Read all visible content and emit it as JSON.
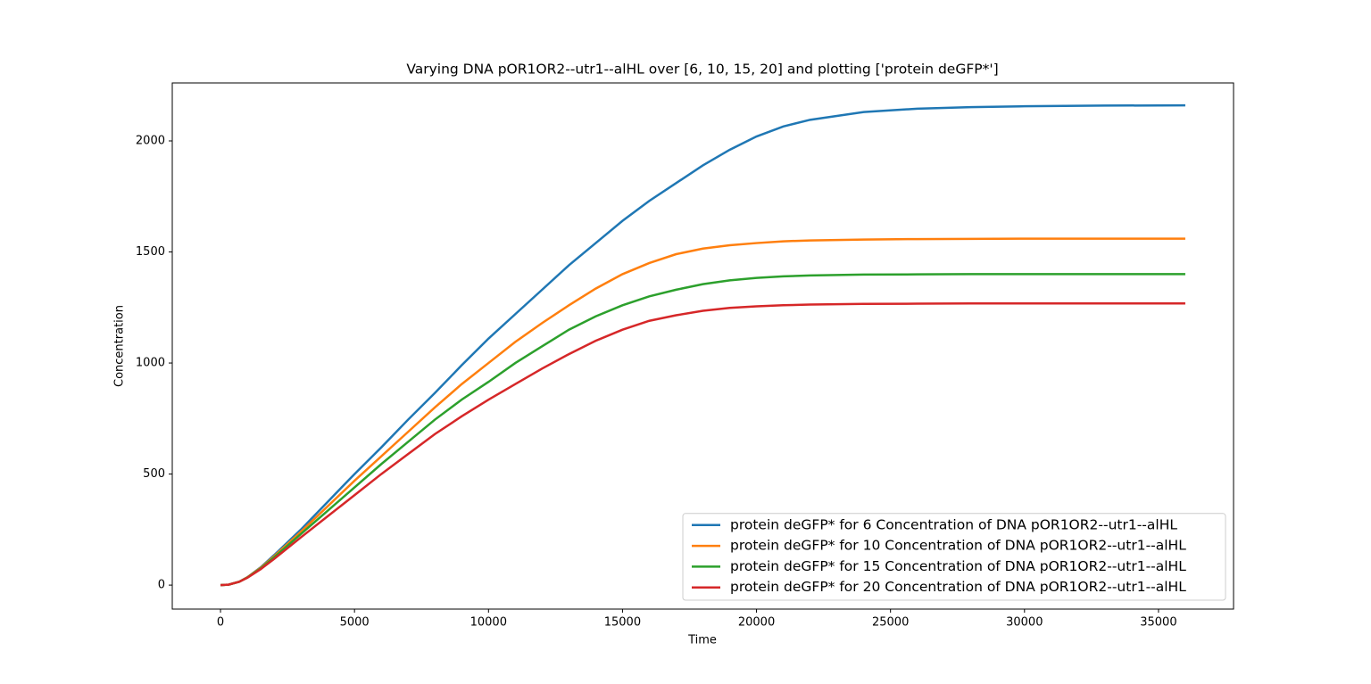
{
  "chart_data": {
    "type": "line",
    "title": "Varying DNA pOR1OR2--utr1--alHL over [6, 10, 15, 20] and plotting ['protein deGFP*']",
    "x_label": "Time",
    "y_label": "Concentration",
    "x": [
      0,
      300,
      700,
      1000,
      1500,
      2000,
      3000,
      4000,
      5000,
      6000,
      7000,
      8000,
      9000,
      10000,
      11000,
      12000,
      13000,
      14000,
      15000,
      16000,
      17000,
      18000,
      19000,
      20000,
      21000,
      22000,
      24000,
      26000,
      28000,
      30000,
      33000,
      36000
    ],
    "series": [
      {
        "name": "protein deGFP* for 6 Concentration of DNA pOR1OR2--utr1--alHL",
        "color": "#1f77b4",
        "values": [
          0,
          2,
          15,
          35,
          80,
          135,
          250,
          375,
          500,
          620,
          745,
          865,
          990,
          1110,
          1220,
          1330,
          1440,
          1540,
          1640,
          1730,
          1810,
          1890,
          1960,
          2020,
          2065,
          2095,
          2130,
          2145,
          2152,
          2156,
          2159,
          2160
        ]
      },
      {
        "name": "protein deGFP* for 10 Concentration of DNA pOR1OR2--utr1--alHL",
        "color": "#ff7f0e",
        "values": [
          0,
          2,
          15,
          35,
          78,
          130,
          240,
          355,
          470,
          580,
          690,
          800,
          905,
          1000,
          1095,
          1180,
          1260,
          1335,
          1400,
          1450,
          1490,
          1515,
          1530,
          1540,
          1548,
          1552,
          1556,
          1558,
          1559,
          1560,
          1560,
          1560
        ]
      },
      {
        "name": "protein deGFP* for 15 Concentration of DNA pOR1OR2--utr1--alHL",
        "color": "#2ca02c",
        "values": [
          0,
          2,
          15,
          34,
          75,
          125,
          230,
          335,
          440,
          545,
          645,
          745,
          835,
          915,
          1000,
          1075,
          1150,
          1210,
          1260,
          1300,
          1330,
          1355,
          1372,
          1383,
          1390,
          1394,
          1398,
          1399,
          1400,
          1400,
          1400,
          1400
        ]
      },
      {
        "name": "protein deGFP* for 20 Concentration of DNA pOR1OR2--utr1--alHL",
        "color": "#d62728",
        "values": [
          0,
          2,
          15,
          33,
          72,
          118,
          215,
          310,
          405,
          500,
          590,
          680,
          760,
          835,
          905,
          975,
          1040,
          1100,
          1150,
          1190,
          1215,
          1235,
          1248,
          1255,
          1260,
          1263,
          1266,
          1267,
          1268,
          1268,
          1268,
          1268
        ]
      }
    ],
    "xlim": [
      -1800,
      37800
    ],
    "xticks": [
      0,
      5000,
      10000,
      15000,
      20000,
      25000,
      30000,
      35000
    ],
    "ylim": [
      -108,
      2261
    ],
    "yticks": [
      0,
      500,
      1000,
      1500,
      2000
    ],
    "legend": "lower right"
  }
}
